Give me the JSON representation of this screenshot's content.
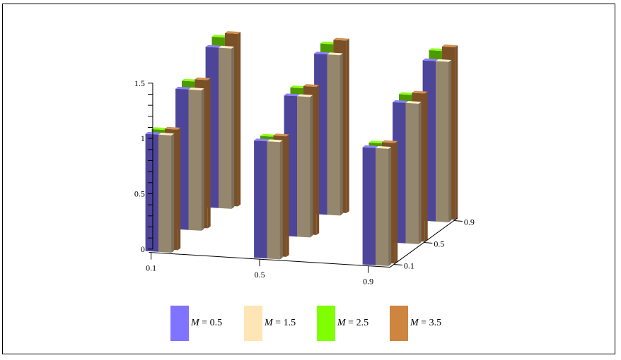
{
  "chart_data": {
    "type": "bar",
    "subtype": "3d-grouped",
    "title": "",
    "xlabel": "",
    "ylabel": "",
    "zlabel": "",
    "x_categories": [
      "0.1",
      "0.5",
      "0.9"
    ],
    "depth_categories": [
      "0.1",
      "0.5",
      "0.9"
    ],
    "vertical_ticks": [
      "0",
      "0.5",
      "1",
      "1.5"
    ],
    "zlim": [
      0,
      1.5
    ],
    "minor_tick_step": 0.1,
    "grid": false,
    "legend_position": "bottom",
    "series": [
      {
        "name": "M = 0.5",
        "symbol": "M",
        "value_label": "= 0.5",
        "color": "#8073FF",
        "side_color": "#4E4290",
        "values": [
          [
            1.06,
            1.27,
            1.45
          ],
          [
            1.06,
            1.27,
            1.45
          ],
          [
            1.06,
            1.27,
            1.45
          ]
        ]
      },
      {
        "name": "M = 1.5",
        "symbol": "M",
        "value_label": "= 1.5",
        "color": "#FFE4B5",
        "side_color": "#94866C",
        "values": [
          [
            1.06,
            1.27,
            1.45
          ],
          [
            1.06,
            1.27,
            1.45
          ],
          [
            1.06,
            1.27,
            1.45
          ]
        ]
      },
      {
        "name": "M = 2.5",
        "symbol": "M",
        "value_label": "= 2.5",
        "color": "#7FFF00",
        "side_color": "#4D9500",
        "values": [
          [
            1.08,
            1.32,
            1.52
          ],
          [
            1.08,
            1.32,
            1.52
          ],
          [
            1.08,
            1.32,
            1.52
          ]
        ]
      },
      {
        "name": "M = 3.5",
        "symbol": "M",
        "value_label": "= 3.5",
        "color": "#CD853F",
        "side_color": "#7A4E28",
        "values": [
          [
            1.09,
            1.34,
            1.56
          ],
          [
            1.09,
            1.34,
            1.56
          ],
          [
            1.09,
            1.34,
            1.56
          ]
        ]
      }
    ]
  }
}
